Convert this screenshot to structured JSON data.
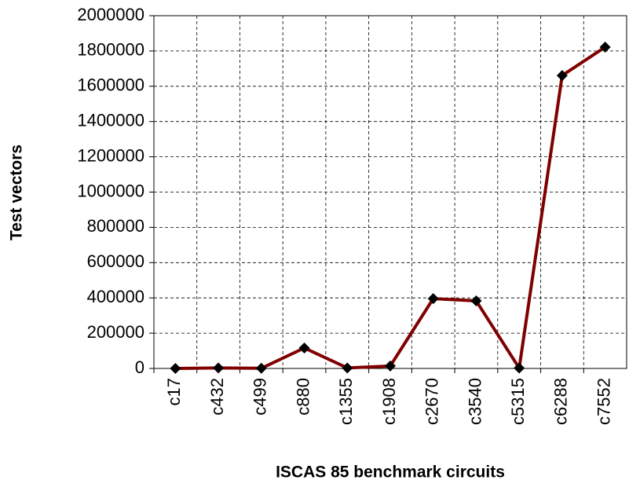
{
  "chart_data": {
    "type": "line",
    "x_label": "ISCAS 85 benchmark circuits",
    "y_label": "Test vectors",
    "categories": [
      "c17",
      "c432",
      "c499",
      "c880",
      "c1355",
      "c1908",
      "c2670",
      "c3540",
      "c5315",
      "c6288",
      "c7552"
    ],
    "series": [
      {
        "name": "Test vectors",
        "color": "#800000",
        "marker_color": "#000000",
        "values": [
          0,
          3000,
          1000,
          116000,
          3000,
          14000,
          396000,
          383000,
          2000,
          1661000,
          1822000
        ]
      }
    ],
    "ylim": [
      0,
      2000000
    ],
    "yticks": [
      0,
      200000,
      400000,
      600000,
      800000,
      1000000,
      1200000,
      1400000,
      1600000,
      1800000,
      2000000
    ],
    "grid": true
  }
}
